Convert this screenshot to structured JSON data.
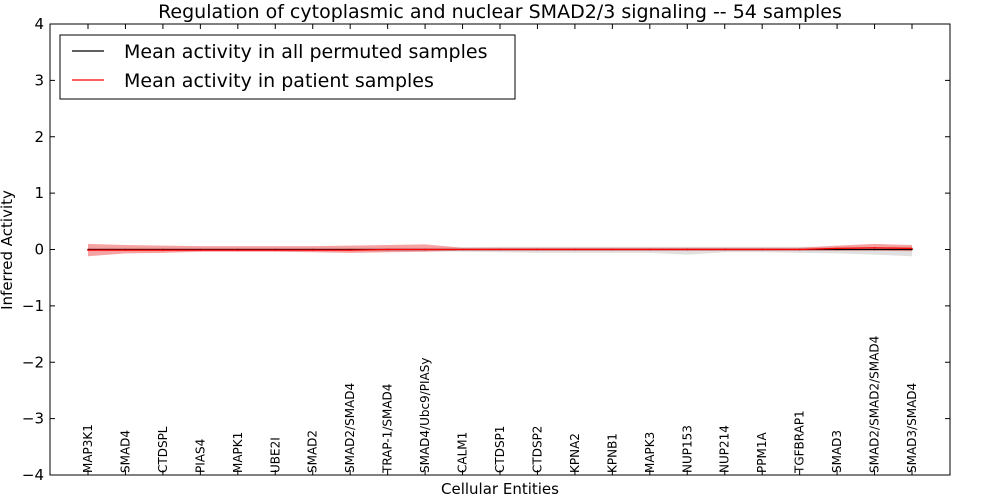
{
  "chart_data": {
    "type": "line",
    "title": "Regulation of cytoplasmic and nuclear SMAD2/3 signaling -- 54 samples",
    "xlabel": "Cellular Entities",
    "ylabel": "Inferred Activity",
    "ylim": [
      -4,
      4
    ],
    "yticks": [
      4,
      3,
      2,
      1,
      0,
      -1,
      -2,
      -3,
      -4
    ],
    "ytick_labels": [
      "4",
      "3",
      "2",
      "1",
      "0",
      "−1",
      "−2",
      "−3",
      "−4"
    ],
    "grid": false,
    "legend_position": "top-left",
    "categories": [
      "MAP3K1",
      "SMAD4",
      "CTDSPL",
      "PIAS4",
      "MAPK1",
      "UBE2I",
      "SMAD2",
      "SMAD2/SMAD4",
      "TRAP-1/SMAD4",
      "SMAD4/Ubc9/PIASy",
      "CALM1",
      "CTDSP1",
      "CTDSP2",
      "KPNA2",
      "KPNB1",
      "MAPK3",
      "NUP153",
      "NUP214",
      "PPM1A",
      "TGFBRAP1",
      "SMAD3",
      "SMAD2/SMAD2/SMAD4",
      "SMAD3/SMAD4"
    ],
    "series": [
      {
        "name": "Mean activity in all permuted samples",
        "color": "#000000",
        "band_color": "#bbbbbb",
        "values": [
          0,
          0,
          0,
          0,
          0,
          0,
          0,
          0,
          0,
          0,
          0,
          0,
          0,
          0,
          0,
          0,
          0,
          0,
          0,
          0,
          0,
          0,
          0
        ],
        "lower": [
          -0.03,
          -0.03,
          -0.03,
          -0.03,
          -0.03,
          -0.03,
          -0.03,
          -0.03,
          -0.03,
          -0.03,
          -0.04,
          -0.05,
          -0.06,
          -0.06,
          -0.06,
          -0.06,
          -0.09,
          -0.05,
          -0.05,
          -0.06,
          -0.07,
          -0.09,
          -0.12
        ],
        "upper": [
          0.03,
          0.03,
          0.03,
          0.03,
          0.03,
          0.03,
          0.03,
          0.03,
          0.03,
          0.03,
          0.04,
          0.05,
          0.05,
          0.05,
          0.05,
          0.05,
          0.05,
          0.05,
          0.05,
          0.05,
          0.05,
          0.05,
          0.05
        ]
      },
      {
        "name": "Mean activity in patient samples",
        "color": "#ff0000",
        "band_color": "#ee6666",
        "values": [
          -0.01,
          -0.01,
          -0.01,
          -0.01,
          -0.01,
          -0.01,
          -0.01,
          -0.01,
          0,
          0,
          0,
          0,
          0,
          0,
          0,
          0,
          0,
          0,
          0,
          0,
          0.02,
          0.03,
          0.02
        ],
        "lower": [
          -0.12,
          -0.07,
          -0.06,
          -0.04,
          -0.04,
          -0.04,
          -0.05,
          -0.06,
          -0.05,
          -0.04,
          -0.02,
          -0.02,
          -0.02,
          -0.02,
          -0.02,
          -0.02,
          -0.02,
          -0.02,
          -0.02,
          -0.02,
          -0.02,
          -0.02,
          -0.03
        ],
        "upper": [
          0.1,
          0.08,
          0.07,
          0.06,
          0.06,
          0.06,
          0.06,
          0.07,
          0.08,
          0.09,
          0.03,
          0.03,
          0.03,
          0.03,
          0.03,
          0.03,
          0.03,
          0.03,
          0.03,
          0.03,
          0.07,
          0.1,
          0.08
        ]
      }
    ]
  }
}
